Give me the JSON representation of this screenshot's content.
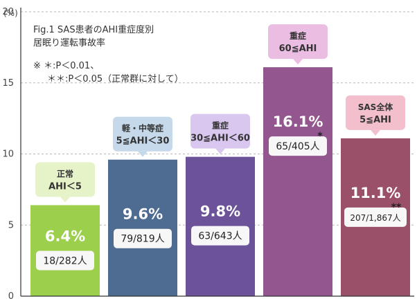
{
  "chart_data": {
    "type": "bar",
    "title": [
      "Fig.1 SAS患者のAHI重症度別",
      "居眠り運転事故率"
    ],
    "note": [
      "※ ＊:P＜0.01、",
      "＊＊:P＜0.05（正常群に対して）"
    ],
    "y_unit": "(%)",
    "ylim": [
      0,
      20
    ],
    "yticks": [
      "0",
      "5",
      "10",
      "15",
      "20"
    ],
    "grid": "dashed-horizontal",
    "categories": [
      [
        "正常",
        "AHI＜5"
      ],
      [
        "軽・中等症",
        "5≦AHI＜30"
      ],
      [
        "重症",
        "30≦AHI＜60"
      ],
      [
        "重症",
        "60≦AHI"
      ],
      [
        "SAS全体",
        "5≦AHI"
      ]
    ],
    "values": [
      6.4,
      9.6,
      9.8,
      16.1,
      11.1
    ],
    "value_labels": [
      "6.4%",
      "9.6%",
      "9.8%",
      "16.1%",
      "11.1%"
    ],
    "counts": [
      "18/282人",
      "79/819人",
      "63/643人",
      "65/405人",
      "207/1,867人"
    ],
    "significance": [
      "",
      "",
      "",
      "*",
      "**"
    ],
    "bar_colors": [
      "#9ccf4c",
      "#4e6c92",
      "#6c5298",
      "#93568f",
      "#9a5068"
    ],
    "callout_colors": [
      "#e6f3c9",
      "#c5d9ea",
      "#d9c7ef",
      "#ebbde2",
      "#f3bfcd"
    ]
  }
}
